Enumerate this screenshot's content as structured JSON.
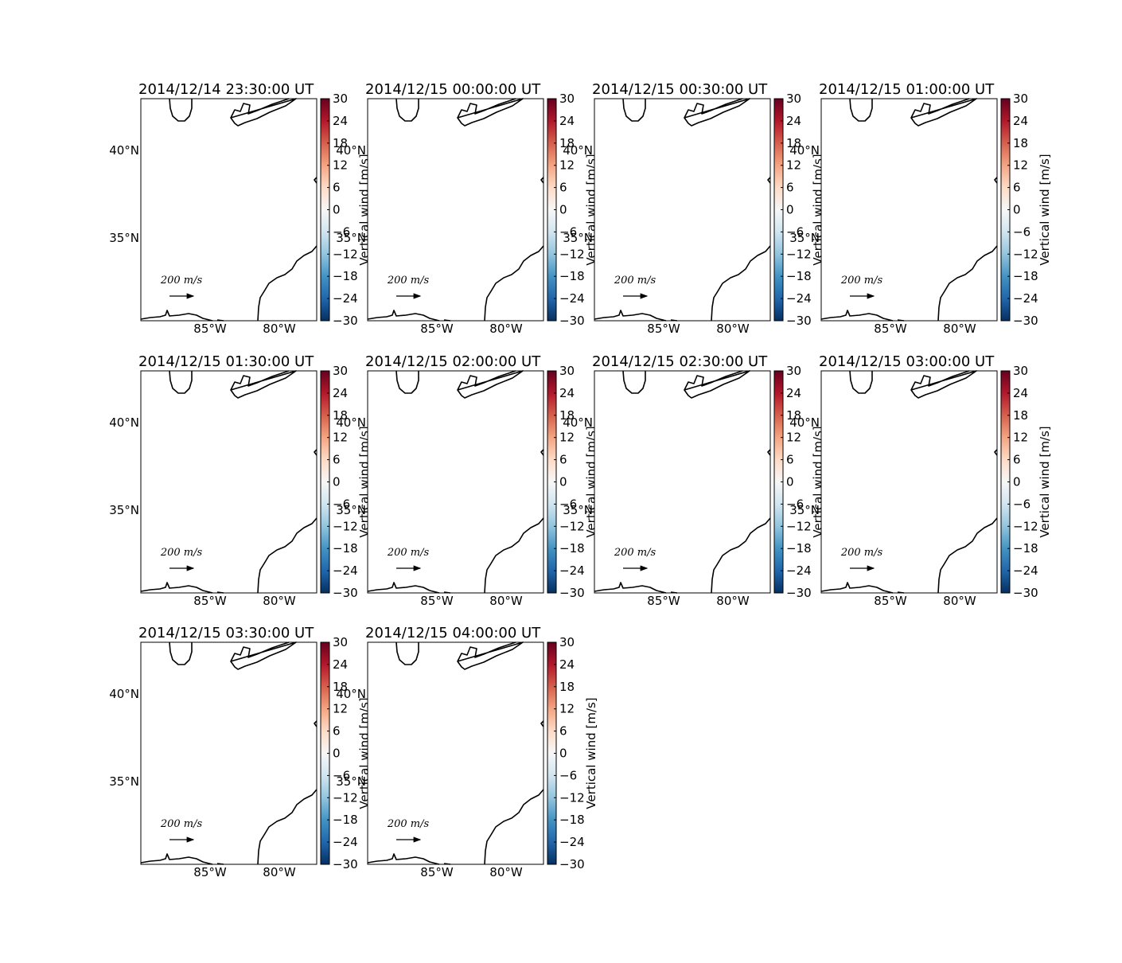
{
  "panels": [
    {
      "title": "2014/12/14 23:30:00 UT"
    },
    {
      "title": "2014/12/15 00:00:00 UT"
    },
    {
      "title": "2014/12/15 00:30:00 UT"
    },
    {
      "title": "2014/12/15 01:00:00 UT"
    },
    {
      "title": "2014/12/15 01:30:00 UT"
    },
    {
      "title": "2014/12/15 02:00:00 UT"
    },
    {
      "title": "2014/12/15 02:30:00 UT"
    },
    {
      "title": "2014/12/15 03:00:00 UT"
    },
    {
      "title": "2014/12/15 03:30:00 UT"
    },
    {
      "title": "2014/12/15 04:00:00 UT"
    }
  ],
  "map": {
    "lonlim": [
      -90,
      -77.3
    ],
    "latlim": [
      30.27,
      42.95
    ],
    "lat_ticks": [
      {
        "value": 40,
        "label": "40°N"
      },
      {
        "value": 35,
        "label": "35°N"
      }
    ],
    "lon_ticks": [
      {
        "value": -85,
        "label": "85°W"
      },
      {
        "value": -80,
        "label": "80°W"
      }
    ],
    "quiver_key": {
      "value": 200,
      "label": "200 m/s"
    },
    "colorbar": {
      "label": "Vertical wind [m/s]",
      "lim": [
        -30,
        30
      ],
      "ticks": [
        30,
        24,
        18,
        12,
        6,
        0,
        {
          "value": -6,
          "label": "−6"
        },
        {
          "value": -12,
          "label": "−12"
        },
        {
          "value": -18,
          "label": "−18"
        },
        {
          "value": -24,
          "label": "−24"
        },
        {
          "value": -30,
          "label": "−30"
        }
      ]
    }
  }
}
